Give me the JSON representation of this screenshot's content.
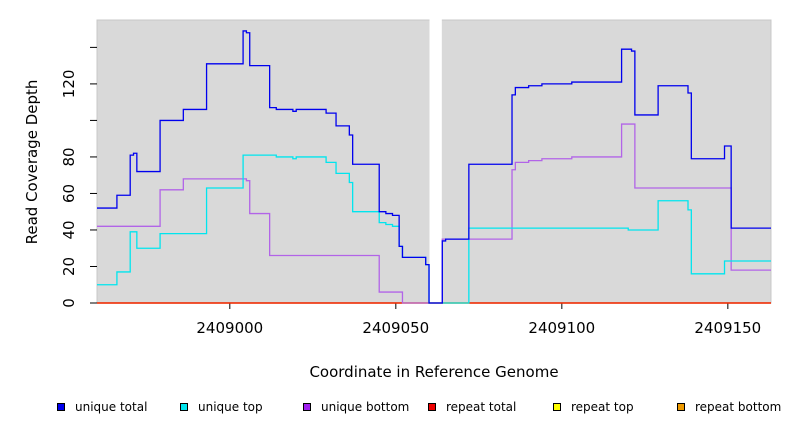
{
  "chart_data": {
    "type": "line",
    "xlabel": "Coordinate in Reference Genome",
    "ylabel": "Read Coverage Depth",
    "xlim": [
      2408960,
      2409163
    ],
    "ylim": [
      0,
      155
    ],
    "x_ticks": [
      2409000,
      2409050,
      2409100,
      2409150
    ],
    "x_tick_labels": [
      "2409000",
      "2409050",
      "2409100",
      "2409150"
    ],
    "y_ticks": [
      0,
      20,
      40,
      60,
      80,
      100,
      120,
      140
    ],
    "y_tick_labels": [
      "0",
      "20",
      "40",
      "60",
      "80",
      "",
      "120",
      ""
    ],
    "background": "#d9d9d9",
    "gaps": [
      [
        2409060,
        2409064
      ]
    ],
    "series": [
      {
        "name": "unique total",
        "color": "#0000ee",
        "points": [
          [
            2408960,
            52
          ],
          [
            2408966,
            52
          ],
          [
            2408966,
            59
          ],
          [
            2408970,
            59
          ],
          [
            2408970,
            81
          ],
          [
            2408971,
            81
          ],
          [
            2408971,
            82
          ],
          [
            2408972,
            82
          ],
          [
            2408972,
            72
          ],
          [
            2408979,
            72
          ],
          [
            2408979,
            100
          ],
          [
            2408986,
            100
          ],
          [
            2408986,
            106
          ],
          [
            2408993,
            106
          ],
          [
            2408993,
            131
          ],
          [
            2409004,
            131
          ],
          [
            2409004,
            149
          ],
          [
            2409005,
            149
          ],
          [
            2409005,
            148
          ],
          [
            2409006,
            148
          ],
          [
            2409006,
            130
          ],
          [
            2409012,
            130
          ],
          [
            2409012,
            107
          ],
          [
            2409014,
            107
          ],
          [
            2409014,
            106
          ],
          [
            2409019,
            106
          ],
          [
            2409019,
            105
          ],
          [
            2409020,
            105
          ],
          [
            2409020,
            106
          ],
          [
            2409029,
            106
          ],
          [
            2409029,
            104
          ],
          [
            2409032,
            104
          ],
          [
            2409032,
            97
          ],
          [
            2409036,
            97
          ],
          [
            2409036,
            92
          ],
          [
            2409037,
            92
          ],
          [
            2409037,
            76
          ],
          [
            2409045,
            76
          ],
          [
            2409045,
            50
          ],
          [
            2409047,
            50
          ],
          [
            2409047,
            49
          ],
          [
            2409049,
            49
          ],
          [
            2409049,
            48
          ],
          [
            2409051,
            48
          ],
          [
            2409051,
            31
          ],
          [
            2409052,
            31
          ],
          [
            2409052,
            25
          ],
          [
            2409059,
            25
          ],
          [
            2409059,
            21
          ],
          [
            2409060,
            21
          ],
          [
            2409060,
            0
          ],
          [
            2409064,
            0
          ],
          [
            2409064,
            34
          ],
          [
            2409065,
            34
          ],
          [
            2409065,
            35
          ],
          [
            2409072,
            35
          ],
          [
            2409072,
            76
          ],
          [
            2409085,
            76
          ],
          [
            2409085,
            114
          ],
          [
            2409086,
            114
          ],
          [
            2409086,
            118
          ],
          [
            2409090,
            118
          ],
          [
            2409090,
            119
          ],
          [
            2409094,
            119
          ],
          [
            2409094,
            120
          ],
          [
            2409103,
            120
          ],
          [
            2409103,
            121
          ],
          [
            2409118,
            121
          ],
          [
            2409118,
            139
          ],
          [
            2409121,
            139
          ],
          [
            2409121,
            138
          ],
          [
            2409122,
            138
          ],
          [
            2409122,
            103
          ],
          [
            2409129,
            103
          ],
          [
            2409129,
            119
          ],
          [
            2409138,
            119
          ],
          [
            2409138,
            115
          ],
          [
            2409139,
            115
          ],
          [
            2409139,
            79
          ],
          [
            2409149,
            79
          ],
          [
            2409149,
            86
          ],
          [
            2409151,
            86
          ],
          [
            2409151,
            41
          ],
          [
            2409163,
            41
          ]
        ]
      },
      {
        "name": "unique top",
        "color": "#00e5ee",
        "points": [
          [
            2408960,
            10
          ],
          [
            2408966,
            10
          ],
          [
            2408966,
            17
          ],
          [
            2408970,
            17
          ],
          [
            2408970,
            39
          ],
          [
            2408972,
            39
          ],
          [
            2408972,
            30
          ],
          [
            2408979,
            30
          ],
          [
            2408979,
            38
          ],
          [
            2408993,
            38
          ],
          [
            2408993,
            63
          ],
          [
            2409004,
            63
          ],
          [
            2409004,
            81
          ],
          [
            2409014,
            81
          ],
          [
            2409014,
            80
          ],
          [
            2409019,
            80
          ],
          [
            2409019,
            79
          ],
          [
            2409020,
            79
          ],
          [
            2409020,
            80
          ],
          [
            2409029,
            80
          ],
          [
            2409029,
            77
          ],
          [
            2409032,
            77
          ],
          [
            2409032,
            71
          ],
          [
            2409036,
            71
          ],
          [
            2409036,
            66
          ],
          [
            2409037,
            66
          ],
          [
            2409037,
            50
          ],
          [
            2409045,
            50
          ],
          [
            2409045,
            44
          ],
          [
            2409047,
            44
          ],
          [
            2409047,
            43
          ],
          [
            2409049,
            43
          ],
          [
            2409049,
            42
          ],
          [
            2409051,
            42
          ],
          [
            2409051,
            31
          ],
          [
            2409052,
            31
          ],
          [
            2409052,
            25
          ],
          [
            2409059,
            25
          ],
          [
            2409059,
            21
          ],
          [
            2409060,
            21
          ],
          [
            2409060,
            0
          ],
          [
            2409072,
            0
          ],
          [
            2409072,
            41
          ],
          [
            2409120,
            41
          ],
          [
            2409120,
            40
          ],
          [
            2409129,
            40
          ],
          [
            2409129,
            56
          ],
          [
            2409138,
            56
          ],
          [
            2409138,
            51
          ],
          [
            2409139,
            51
          ],
          [
            2409139,
            16
          ],
          [
            2409149,
            16
          ],
          [
            2409149,
            23
          ],
          [
            2409163,
            23
          ]
        ]
      },
      {
        "name": "unique bottom",
        "color": "#b264e8",
        "points": [
          [
            2408960,
            42
          ],
          [
            2408979,
            42
          ],
          [
            2408979,
            62
          ],
          [
            2408986,
            62
          ],
          [
            2408986,
            68
          ],
          [
            2409005,
            68
          ],
          [
            2409005,
            67
          ],
          [
            2409006,
            67
          ],
          [
            2409006,
            49
          ],
          [
            2409012,
            49
          ],
          [
            2409012,
            26
          ],
          [
            2409045,
            26
          ],
          [
            2409045,
            6
          ],
          [
            2409052,
            6
          ],
          [
            2409052,
            0
          ],
          [
            2409064,
            0
          ],
          [
            2409064,
            35
          ],
          [
            2409085,
            35
          ],
          [
            2409085,
            73
          ],
          [
            2409086,
            73
          ],
          [
            2409086,
            77
          ],
          [
            2409090,
            77
          ],
          [
            2409090,
            78
          ],
          [
            2409094,
            78
          ],
          [
            2409094,
            79
          ],
          [
            2409103,
            79
          ],
          [
            2409103,
            80
          ],
          [
            2409118,
            80
          ],
          [
            2409118,
            98
          ],
          [
            2409122,
            98
          ],
          [
            2409122,
            63
          ],
          [
            2409151,
            63
          ],
          [
            2409151,
            18
          ],
          [
            2409163,
            18
          ]
        ]
      },
      {
        "name": "repeat total",
        "color": "#ee0000",
        "points": [
          [
            2408960,
            0
          ],
          [
            2409163,
            0
          ]
        ]
      },
      {
        "name": "repeat top",
        "color": "#eeee00",
        "points": [
          [
            2408960,
            0
          ],
          [
            2409163,
            0
          ]
        ]
      },
      {
        "name": "repeat bottom",
        "color": "#ee9a00",
        "points": [
          [
            2408960,
            0
          ],
          [
            2409163,
            0
          ]
        ]
      }
    ]
  },
  "legend": {
    "items": [
      {
        "label": "unique total",
        "color": "#0000ee"
      },
      {
        "label": "unique top",
        "color": "#00e5ee"
      },
      {
        "label": "unique bottom",
        "color": "#a020f0"
      },
      {
        "label": "repeat total",
        "color": "#ee0000"
      },
      {
        "label": "repeat top",
        "color": "#ffff00"
      },
      {
        "label": "repeat bottom",
        "color": "#ee9a00"
      }
    ]
  }
}
